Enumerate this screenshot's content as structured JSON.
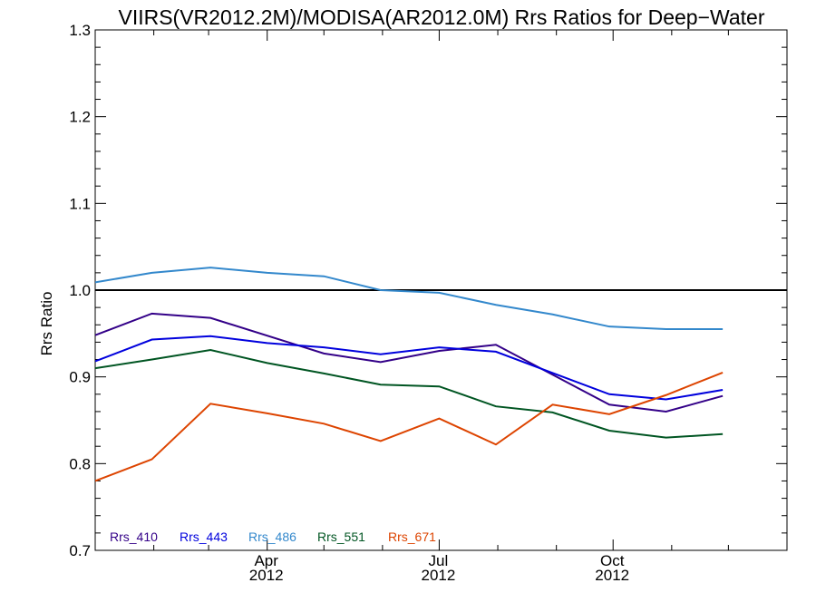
{
  "chart_data": {
    "type": "line",
    "title": "VIIRS(VR2012.2M)/MODISA(AR2012.0M)  Rrs Ratios for Deep−Water",
    "xlabel": "",
    "ylabel": "Rrs Ratio",
    "x_range": [
      "2012-01-01",
      "2012-12-31"
    ],
    "ylim": [
      0.7,
      1.3
    ],
    "y_ticks": [
      "0.7",
      "0.8",
      "0.9",
      "1.0",
      "1.1",
      "1.2",
      "1.3"
    ],
    "x_ticks": [
      {
        "date": "2012-04-01",
        "month": "Apr",
        "year": "2012"
      },
      {
        "date": "2012-07-01",
        "month": "Jul",
        "year": "2012"
      },
      {
        "date": "2012-10-01",
        "month": "Oct",
        "year": "2012"
      }
    ],
    "minor_ticks": [
      "2012-02-01",
      "2012-03-01",
      "2012-05-01",
      "2012-06-01",
      "2012-08-01",
      "2012-09-01",
      "2012-11-01",
      "2012-12-01"
    ],
    "reference_line": 1.0,
    "legend_placement": "bottom-left",
    "x": [
      "2012-01-01",
      "2012-01-31",
      "2012-03-02",
      "2012-04-01",
      "2012-05-01",
      "2012-05-31",
      "2012-07-01",
      "2012-07-31",
      "2012-08-30",
      "2012-09-29",
      "2012-10-29",
      "2012-11-28",
      "2012-12-31"
    ],
    "series": [
      {
        "name": "Rrs_410",
        "color": "#330088",
        "values": [
          0.948,
          0.973,
          0.968,
          null,
          0.927,
          0.917,
          0.93,
          0.937,
          null,
          0.868,
          0.86,
          0.878,
          null
        ]
      },
      {
        "name": "Rrs_443",
        "color": "#0000dd",
        "values": [
          0.918,
          0.943,
          0.947,
          0.939,
          0.934,
          0.926,
          0.934,
          0.929,
          null,
          0.88,
          0.874,
          0.885,
          null
        ]
      },
      {
        "name": "Rrs_486",
        "color": "#3388cc",
        "values": [
          1.009,
          1.02,
          1.026,
          1.02,
          1.016,
          1.0,
          0.997,
          0.983,
          0.972,
          0.958,
          0.955,
          0.955,
          null
        ]
      },
      {
        "name": "Rrs_551",
        "color": "#005522",
        "values": [
          0.91,
          0.92,
          0.931,
          0.916,
          0.904,
          0.891,
          0.889,
          0.866,
          0.859,
          0.838,
          0.83,
          0.834,
          null
        ]
      },
      {
        "name": "Rrs_671",
        "color": "#dd4400",
        "values": [
          0.78,
          0.805,
          0.869,
          0.858,
          0.846,
          0.826,
          0.852,
          0.822,
          0.868,
          0.857,
          0.879,
          0.905,
          null
        ]
      }
    ]
  }
}
